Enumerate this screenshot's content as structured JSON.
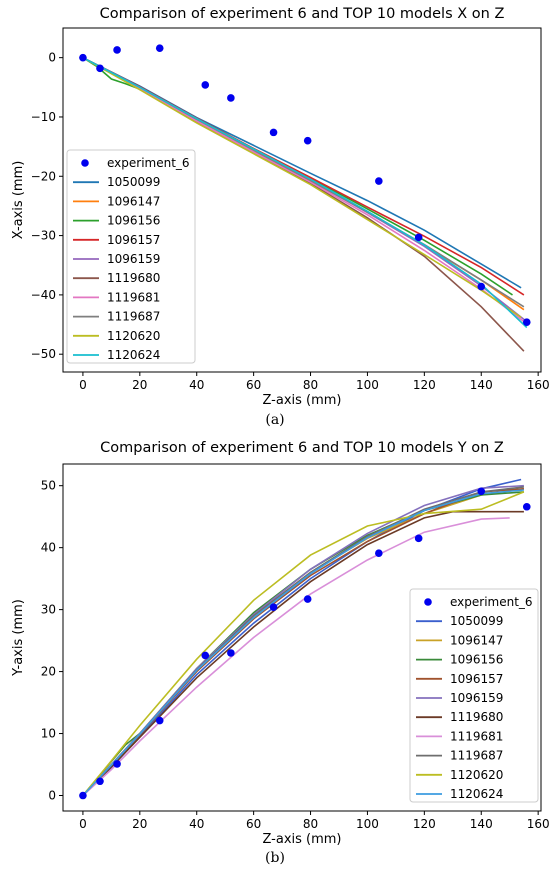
{
  "chart_data": [
    {
      "type": "line",
      "title": "Comparison of experiment 6 and TOP 10 models X on Z",
      "xlabel": "Z-axis (mm)",
      "ylabel": "X-axis (mm)",
      "caption": "(a)",
      "xlim": [
        -7,
        161
      ],
      "ylim": [
        -53,
        5
      ],
      "xticks": [
        0,
        20,
        40,
        60,
        80,
        100,
        120,
        140,
        160
      ],
      "yticks": [
        0,
        -10,
        -20,
        -30,
        -40,
        -50
      ],
      "grid": false,
      "legend_position": "lower-left",
      "experiment": {
        "name": "experiment_6",
        "color": "#0000ee",
        "points": [
          [
            0,
            0
          ],
          [
            6,
            -1.8
          ],
          [
            12,
            1.3
          ],
          [
            27,
            1.6
          ],
          [
            43,
            -4.6
          ],
          [
            52,
            -6.8
          ],
          [
            67,
            -12.6
          ],
          [
            79,
            -14
          ],
          [
            104,
            -20.8
          ],
          [
            118,
            -30.3
          ],
          [
            140,
            -38.6
          ],
          [
            156,
            -44.6
          ]
        ]
      },
      "series": [
        {
          "name": "1050099",
          "color": "#1f77b4",
          "x": [
            0,
            20,
            40,
            60,
            80,
            100,
            120,
            140,
            154
          ],
          "y": [
            0,
            -4.8,
            -10.1,
            -14.8,
            -19.5,
            -24.1,
            -29.1,
            -34.8,
            -38.8
          ]
        },
        {
          "name": "1096147",
          "color": "#ff7f0e",
          "x": [
            0,
            20,
            40,
            60,
            80,
            100,
            120,
            140,
            155
          ],
          "y": [
            0,
            -5.2,
            -10.8,
            -15.9,
            -20.8,
            -26,
            -31.6,
            -37.5,
            -42.5
          ]
        },
        {
          "name": "1096156",
          "color": "#2ca02c",
          "x": [
            0,
            5,
            10,
            15,
            20,
            40,
            60,
            80,
            100,
            120,
            140,
            151
          ],
          "y": [
            0,
            -1.5,
            -3.6,
            -4.4,
            -5.3,
            -10.4,
            -15.4,
            -20.3,
            -25.5,
            -30.8,
            -36.5,
            -40
          ]
        },
        {
          "name": "1096157",
          "color": "#d62728",
          "x": [
            0,
            20,
            40,
            60,
            80,
            100,
            120,
            140,
            155
          ],
          "y": [
            0,
            -4.9,
            -10.2,
            -15.3,
            -20.2,
            -25.2,
            -30.1,
            -35.4,
            -40
          ]
        },
        {
          "name": "1096159",
          "color": "#9467bd",
          "x": [
            0,
            20,
            40,
            60,
            80,
            100,
            120,
            140,
            156
          ],
          "y": [
            0,
            -5,
            -10.3,
            -15.5,
            -20.7,
            -26.1,
            -31.8,
            -38.5,
            -44.5
          ]
        },
        {
          "name": "1119680",
          "color": "#8c564b",
          "x": [
            0,
            20,
            40,
            60,
            80,
            100,
            120,
            140,
            155
          ],
          "y": [
            0,
            -5.3,
            -10.8,
            -16,
            -21.2,
            -27,
            -33.5,
            -42,
            -49.5
          ]
        },
        {
          "name": "1119681",
          "color": "#e377c2",
          "x": [
            0,
            20,
            40,
            60,
            80,
            100,
            120,
            140,
            155
          ],
          "y": [
            0,
            -5.2,
            -10.7,
            -15.9,
            -21,
            -26.5,
            -32.5,
            -39,
            -44.5
          ]
        },
        {
          "name": "1119687",
          "color": "#7f7f7f",
          "x": [
            0,
            20,
            40,
            60,
            80,
            100,
            120,
            140,
            155
          ],
          "y": [
            0,
            -5,
            -10.4,
            -15.6,
            -20.7,
            -26,
            -31.5,
            -37.5,
            -42
          ]
        },
        {
          "name": "1120620",
          "color": "#bcbd22",
          "x": [
            0,
            20,
            40,
            60,
            80,
            100,
            120,
            140,
            154
          ],
          "y": [
            0,
            -5.4,
            -11,
            -16.2,
            -21.4,
            -27.3,
            -33.2,
            -39.2,
            -43.8
          ]
        },
        {
          "name": "1120624",
          "color": "#17becf",
          "x": [
            0,
            20,
            40,
            60,
            80,
            100,
            120,
            140,
            156
          ],
          "y": [
            0,
            -5,
            -10.3,
            -15.4,
            -20.5,
            -25.9,
            -31.6,
            -38.2,
            -45.5
          ]
        }
      ]
    },
    {
      "type": "line",
      "title": "Comparison of experiment 6 and TOP 10 models Y on Z",
      "xlabel": "Z-axis (mm)",
      "ylabel": "Y-axis (mm)",
      "caption": "(b)",
      "xlim": [
        -7,
        161
      ],
      "ylim": [
        -2.5,
        53.5
      ],
      "xticks": [
        0,
        20,
        40,
        60,
        80,
        100,
        120,
        140,
        160
      ],
      "yticks": [
        0,
        10,
        20,
        30,
        40,
        50
      ],
      "grid": false,
      "legend_position": "lower-right",
      "experiment": {
        "name": "experiment_6",
        "color": "#0000ee",
        "points": [
          [
            0,
            0
          ],
          [
            6,
            2.3
          ],
          [
            12,
            5.1
          ],
          [
            27,
            12.1
          ],
          [
            43,
            22.6
          ],
          [
            52,
            23
          ],
          [
            67,
            30.4
          ],
          [
            79,
            31.7
          ],
          [
            104,
            39.1
          ],
          [
            118,
            41.5
          ],
          [
            140,
            49.1
          ],
          [
            156,
            46.6
          ]
        ]
      },
      "series": [
        {
          "name": "1050099",
          "color": "#3a5fcd",
          "x": [
            0,
            10,
            20,
            40,
            60,
            80,
            100,
            120,
            140,
            154
          ],
          "y": [
            0,
            4.5,
            9.5,
            19.5,
            27.8,
            35,
            41,
            46,
            49.5,
            51
          ]
        },
        {
          "name": "1096147",
          "color": "#c9a227",
          "x": [
            0,
            10,
            20,
            40,
            60,
            80,
            100,
            120,
            140,
            155
          ],
          "y": [
            0,
            5,
            10,
            20.5,
            29,
            36,
            41.5,
            45.5,
            48.5,
            49.5
          ]
        },
        {
          "name": "1096156",
          "color": "#3a8a3a",
          "x": [
            0,
            10,
            15,
            20,
            40,
            60,
            80,
            100,
            120,
            140,
            155
          ],
          "y": [
            0,
            5.5,
            8.2,
            10,
            20.5,
            29.5,
            36.5,
            42,
            46,
            48.5,
            49
          ]
        },
        {
          "name": "1096157",
          "color": "#a0522d",
          "x": [
            0,
            10,
            20,
            40,
            60,
            80,
            100,
            120,
            140,
            155
          ],
          "y": [
            0,
            4.8,
            9.8,
            20,
            28.5,
            35.5,
            41,
            45.5,
            49,
            49.5
          ]
        },
        {
          "name": "1096159",
          "color": "#8470bd",
          "x": [
            0,
            10,
            20,
            40,
            60,
            80,
            100,
            120,
            140,
            155
          ],
          "y": [
            0,
            5,
            10,
            20.5,
            29.2,
            36.5,
            42.3,
            46.8,
            49.6,
            50
          ]
        },
        {
          "name": "1119680",
          "color": "#6b3a26",
          "x": [
            0,
            10,
            20,
            40,
            60,
            80,
            100,
            120,
            130,
            155
          ],
          "y": [
            0,
            4.6,
            9.4,
            19,
            27.2,
            34.5,
            40.5,
            44.8,
            45.8,
            45.8
          ]
        },
        {
          "name": "1119681",
          "color": "#d98fd9",
          "x": [
            0,
            10,
            20,
            40,
            60,
            80,
            100,
            120,
            140,
            150
          ],
          "y": [
            0,
            4.2,
            8.8,
            17.5,
            25.5,
            32.5,
            38,
            42.5,
            44.6,
            44.8
          ]
        },
        {
          "name": "1119687",
          "color": "#6e6e6e",
          "x": [
            0,
            10,
            20,
            40,
            60,
            80,
            100,
            120,
            140,
            155
          ],
          "y": [
            0,
            4.9,
            9.9,
            20.3,
            29,
            36,
            41.8,
            46.2,
            49,
            49.8
          ]
        },
        {
          "name": "1120620",
          "color": "#bcbd22",
          "x": [
            0,
            10,
            20,
            40,
            60,
            80,
            100,
            120,
            140,
            155
          ],
          "y": [
            0,
            5.6,
            11.3,
            22,
            31.5,
            38.8,
            43.5,
            45.5,
            46.2,
            49
          ]
        },
        {
          "name": "1120624",
          "color": "#3c9be0",
          "x": [
            0,
            10,
            20,
            40,
            60,
            80,
            100,
            120,
            140,
            155
          ],
          "y": [
            0,
            4.9,
            9.9,
            20.2,
            28.7,
            35.8,
            41.6,
            46,
            48.7,
            49.3
          ]
        }
      ]
    }
  ]
}
